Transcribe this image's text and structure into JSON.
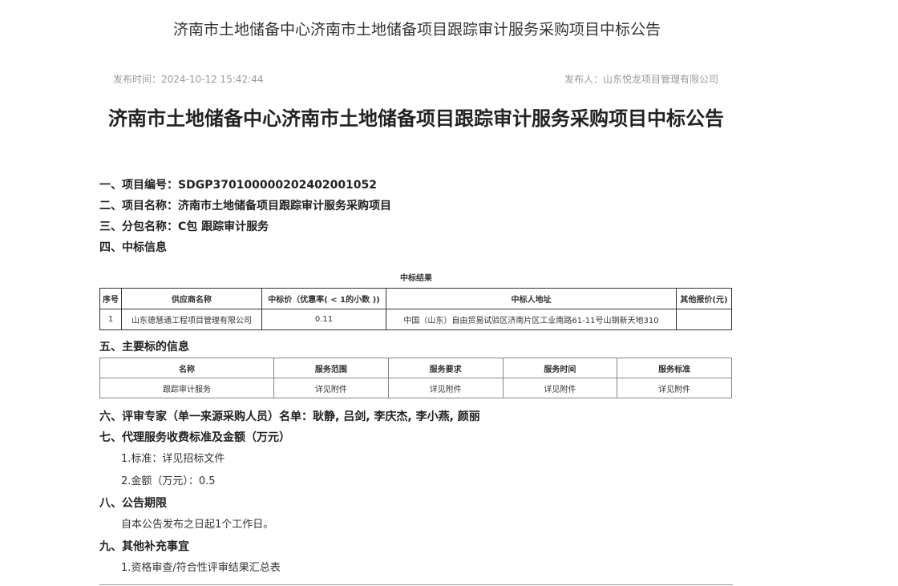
{
  "page_title": "济南市土地储备中心济南市土地储备项目跟踪审计服务采购项目中标公告",
  "publish_time": "发布时间：2024-10-12 15:42:44",
  "publisher": "发布人：山东悦龙项目管理有限公司",
  "heading": "济南市土地储备中心济南市土地储备项目跟踪审计服务采购项目中标公告",
  "s1": "一、项目编号：SDGP370100000202402001052",
  "s2": "二、项目名称：济南市土地储备项目跟踪审计服务采购项目",
  "s3": "三、分包名称：C包 跟踪审计服务",
  "s4": "四、中标信息",
  "result_caption": "中标结果",
  "result_table": {
    "headers": [
      "序号",
      "供应商名称",
      "中标价（优惠率( < 1的小数 ))",
      "中标人地址",
      "其他报价(元)"
    ],
    "rows": [
      [
        "1",
        "山东德慧通工程项目管理有限公司",
        "0.11",
        "中国（山东）自由贸易试验区济南片区工业南路61-11号山钢新天地310",
        ""
      ]
    ]
  },
  "s5": "五、主要标的信息",
  "subject_table": {
    "headers": [
      "名称",
      "服务范围",
      "服务要求",
      "服务时间",
      "服务标准"
    ],
    "rows": [
      [
        "跟踪审计服务",
        "详见附件",
        "详见附件",
        "详见附件",
        "详见附件"
      ]
    ]
  },
  "s6": "六、评审专家（单一来源采购人员）名单：耿静, 吕剑, 李庆杰, 李小燕, 颜丽",
  "s7": "七、代理服务收费标准及金额（万元）",
  "s7_1": "1.标准：详见招标文件",
  "s7_2": "2.金额（万元）：0.5",
  "s8": "八、公告期限",
  "s8_1": "自本公告发布之日起1个工作日。",
  "s9": "九、其他补充事宜",
  "s9_1": "1.资格审查/符合性评审结果汇总表"
}
